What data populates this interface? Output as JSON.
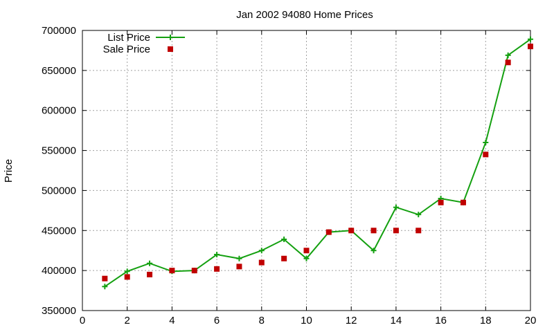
{
  "chart_data": {
    "type": "line",
    "title": "Jan 2002 94080 Home Prices",
    "xlabel": "",
    "ylabel": "Price",
    "xlim": [
      0,
      20
    ],
    "ylim": [
      350000,
      700000
    ],
    "xticks": [
      0,
      2,
      4,
      6,
      8,
      10,
      12,
      14,
      16,
      18,
      20
    ],
    "yticks": [
      350000,
      400000,
      450000,
      500000,
      550000,
      600000,
      650000,
      700000
    ],
    "grid": true,
    "legend_position": "top-left",
    "series": [
      {
        "name": "List Price",
        "style": "line+cross",
        "color": "#14a010",
        "x": [
          1,
          2,
          3,
          4,
          5,
          6,
          7,
          8,
          9,
          10,
          11,
          12,
          13,
          14,
          15,
          16,
          17,
          18,
          19,
          20
        ],
        "y": [
          380000,
          399000,
          409000,
          399000,
          400000,
          420000,
          415000,
          425000,
          439000,
          415000,
          448000,
          450000,
          425000,
          479000,
          470000,
          490000,
          485000,
          560000,
          669000,
          689000
        ]
      },
      {
        "name": "Sale Price",
        "style": "square",
        "color": "#c00000",
        "x": [
          1,
          2,
          3,
          4,
          5,
          6,
          7,
          8,
          9,
          10,
          11,
          12,
          13,
          14,
          15,
          16,
          17,
          18,
          19,
          20
        ],
        "y": [
          390000,
          392000,
          395000,
          400000,
          400000,
          402000,
          405000,
          410000,
          415000,
          425000,
          448000,
          450000,
          450000,
          450000,
          450000,
          485000,
          485000,
          545000,
          660000,
          680000
        ]
      }
    ]
  }
}
